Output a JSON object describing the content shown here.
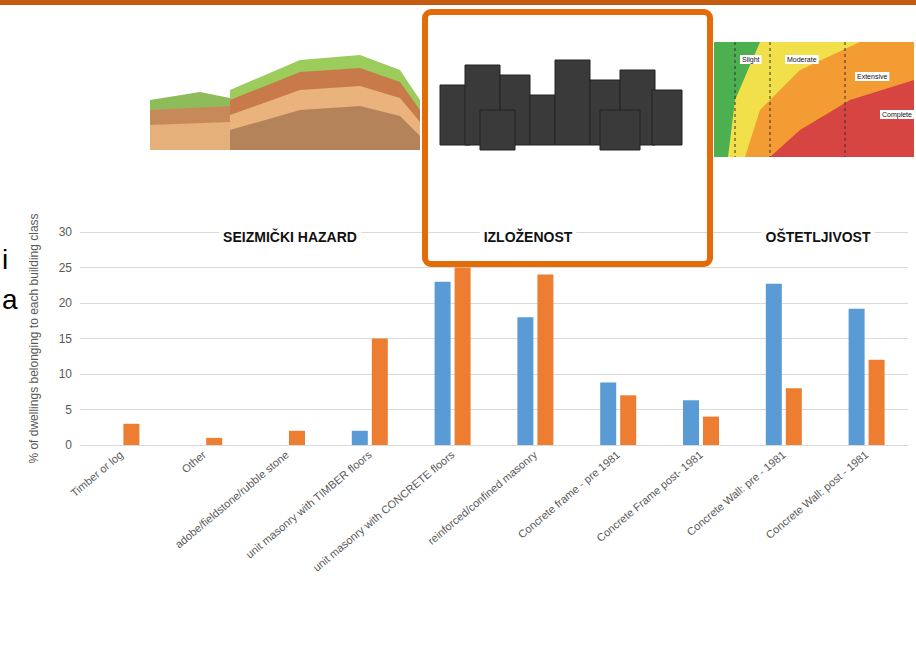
{
  "chart_data": {
    "type": "bar",
    "y_label": "% of dwellings belonging to each building class",
    "categories": [
      "Timber or log",
      "Other",
      "adobe/fieldstone/rubble stone",
      "unit masonry with TIMBER floors",
      "unit masonry with CONCRETE floors",
      "reinforced/confined masonry",
      "Concrete frame - pre 1981",
      "Concrete Frame post- 1981",
      "Concrete Wall: pre - 1981",
      "Concrete Wall: post - 1981"
    ],
    "series": [
      {
        "color": "#5b9bd5",
        "values": [
          0,
          0,
          0,
          2,
          23,
          18,
          8.8,
          6.3,
          22.7,
          19.2
        ]
      },
      {
        "color": "#ed7d31",
        "values": [
          3,
          1,
          2,
          15,
          25,
          24,
          7,
          4,
          8,
          12
        ]
      }
    ],
    "ylim": [
      0,
      30
    ],
    "yticks": [
      0,
      5,
      10,
      15,
      20,
      25,
      30
    ],
    "grid": true
  },
  "header": {
    "panels": [
      "SEIZMIČKI HAZARD",
      "IZLOŽENOST",
      "OŠTETLJIVOST"
    ],
    "highlighted": "IZLOŽENOST",
    "curve_labels": [
      "Slight",
      "Moderate",
      "Extensive",
      "Complete"
    ]
  },
  "side_text": [
    "i",
    "a"
  ]
}
